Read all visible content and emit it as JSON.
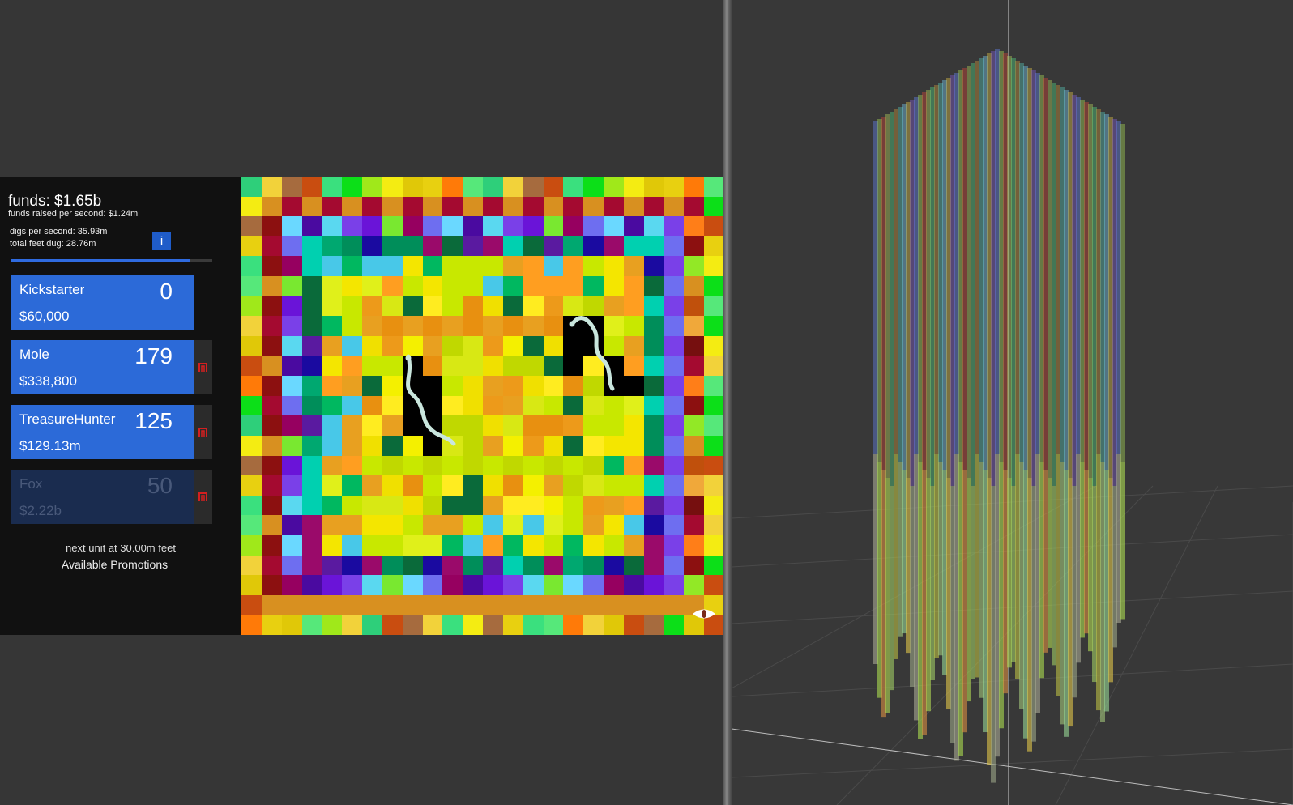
{
  "panel": {
    "funds": "funds: $1.65b",
    "funds_rate": "funds raised per second: $1.24m",
    "digs_rate": "digs per second: 35.93m",
    "total_dug": "total feet dug: 28.76m",
    "info_label": "i",
    "progress_fraction": 0.89,
    "next_unit": "next unit at 30.00m feet",
    "promotions_label": "Available Promotions"
  },
  "units": [
    {
      "name": "Kickstarter",
      "count": "0",
      "cost": "$60,000",
      "available": true
    },
    {
      "name": "Mole",
      "count": "179",
      "cost": "$338,800",
      "available": true
    },
    {
      "name": "TreasureHunter",
      "count": "125",
      "cost": "$129.13m",
      "available": true
    },
    {
      "name": "Fox",
      "count": "50",
      "cost": "$2.22b",
      "available": false
    }
  ],
  "icons": {
    "sell": "sell-magnet-icon",
    "view": "eye-icon",
    "info": "info-icon"
  },
  "colors": {
    "unit_button": "#2c6ad8",
    "unit_button_disabled": "#1a2c4f",
    "panel_bg": "#111111",
    "progress_fill": "#2f6be0",
    "sell_icon": "#d41f1f",
    "dug_tile": "#000000"
  }
}
